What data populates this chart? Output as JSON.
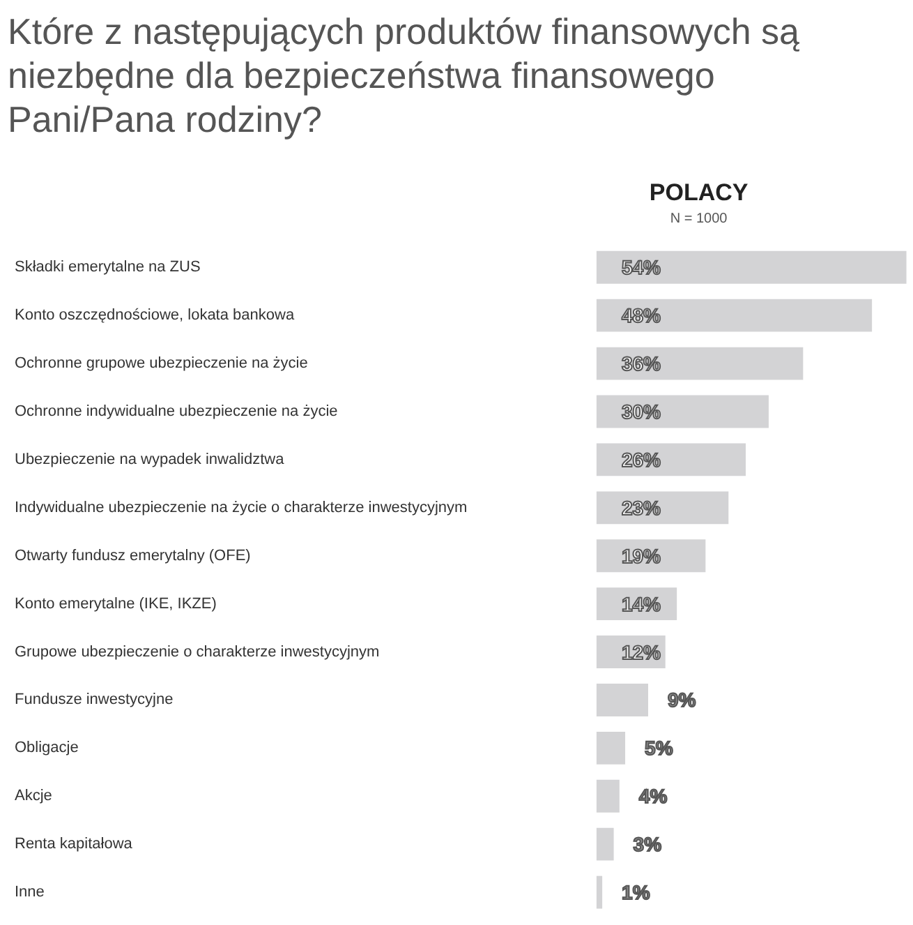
{
  "chart_data": {
    "type": "bar",
    "orientation": "horizontal",
    "title": "Które z następujących produktów finansowych są niezbędne dla bezpieczeństwa finansowego Pani/Pana rodziny?",
    "subtitle": "POLACY",
    "annotations": [
      "N = 1000"
    ],
    "categories": [
      "Składki emerytalne na ZUS",
      "Konto oszczędnościowe, lokata bankowa",
      "Ochronne grupowe ubezpieczenie na życie",
      "Ochronne indywidualne ubezpieczenie na życie",
      "Ubezpieczenie na wypadek inwalidztwa",
      "Indywidualne ubezpieczenie na życie o charakterze inwestycyjnym",
      "Otwarty fundusz emerytalny (OFE)",
      "Konto emerytalne (IKE, IKZE)",
      "Grupowe ubezpieczenie o charakterze inwestycyjnym",
      "Fundusze inwestycyjne",
      "Obligacje",
      "Akcje",
      "Renta kapitałowa",
      "Inne"
    ],
    "values": [
      54,
      48,
      36,
      30,
      26,
      23,
      19,
      14,
      12,
      9,
      5,
      4,
      3,
      1
    ],
    "value_labels": [
      "54%",
      "48%",
      "36%",
      "30%",
      "26%",
      "23%",
      "19%",
      "14%",
      "12%",
      "9%",
      "5%",
      "4%",
      "3%",
      "1%"
    ],
    "color": "#d3d3d5",
    "grid": false
  }
}
